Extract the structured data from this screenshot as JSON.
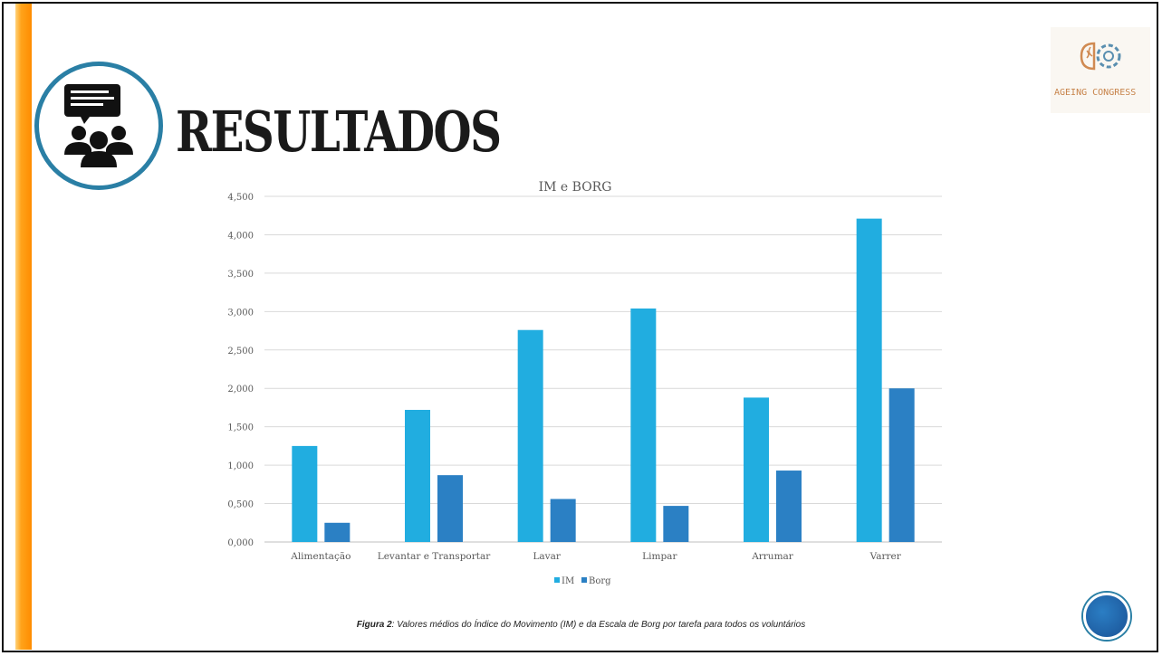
{
  "slide": {
    "title": "RESULTADOS",
    "logo_text": "AGEING CONGRESS",
    "caption_label": "Figura 2",
    "caption_text": ": Valores médios do Índice do Movimento (IM) e da Escala de Borg por tarefa para todos os voluntários",
    "accent_color": "#ff9a1a",
    "icon": "presentation-audience-icon",
    "nav_icon": "circle-nav-icon"
  },
  "chart_data": {
    "type": "bar",
    "title": "IM e BORG",
    "xlabel": "",
    "ylabel": "",
    "ylim": [
      0,
      4.5
    ],
    "yticks": [
      "0,000",
      "0,500",
      "1,000",
      "1,500",
      "2,000",
      "2,500",
      "3,000",
      "3,500",
      "4,000",
      "4,500"
    ],
    "grid": true,
    "legend_position": "bottom",
    "categories": [
      "Alimentação",
      "Levantar e Transportar",
      "Lavar",
      "Limpar",
      "Arrumar",
      "Varrer"
    ],
    "series": [
      {
        "name": "IM",
        "color": "#21ade0",
        "values": [
          1.25,
          1.72,
          2.76,
          3.04,
          1.88,
          4.21
        ]
      },
      {
        "name": "Borg",
        "color": "#2b80c4",
        "values": [
          0.25,
          0.87,
          0.56,
          0.47,
          0.93,
          2.0
        ]
      }
    ]
  }
}
